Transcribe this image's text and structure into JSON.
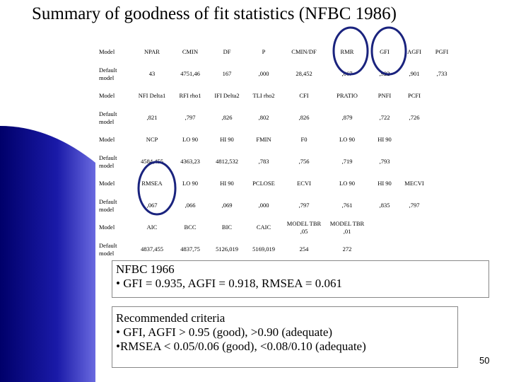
{
  "header": {
    "title": "Summary of goodness of fit statistics (NFBC 1986)"
  },
  "table": {
    "rows": [
      [
        "Model",
        "NPAR",
        "CMIN",
        "DF",
        "P",
        "CMIN/DF",
        "RMR",
        "GFI",
        "AGFI",
        "PGFI"
      ],
      [
        "Default model",
        "43",
        "4751,46",
        "167",
        ",000",
        "28,452",
        ",067",
        ",922",
        ",901",
        ",733"
      ],
      [
        "Model",
        "NFI Delta1",
        "RFI rho1",
        "IFI Delta2",
        "TLI rho2",
        "CFI",
        "PRATIO",
        "PNFI",
        "PCFI"
      ],
      [
        "Default model",
        ",821",
        ",797",
        ",826",
        ",802",
        ",826",
        ",879",
        ",722",
        ",726"
      ],
      [
        "Model",
        "NCP",
        "LO 90",
        "HI 90",
        "FMIN",
        "F0",
        "LO 90",
        "HI 90"
      ],
      [
        "Default model",
        "4584,455",
        "4363,23",
        "4812,532",
        ",783",
        ",756",
        ",719",
        ",793"
      ],
      [
        "Model",
        "RMSEA",
        "LO 90",
        "HI 90",
        "PCLOSE",
        "ECVI",
        "LO 90",
        "HI 90",
        "MECVI"
      ],
      [
        "Default model",
        ",067",
        ",066",
        ",069",
        ",000",
        ",797",
        ",761",
        ",835",
        ",797"
      ],
      [
        "Model",
        "AIC",
        "BCC",
        "BIC",
        "CAIC",
        "MODEL TBR ,05",
        "MODEL TBR ,01"
      ],
      [
        "Default model",
        "4837,455",
        "4837,75",
        "5126,019",
        "5169,019",
        "254",
        "272"
      ]
    ]
  },
  "box1": {
    "lines": [
      "NFBC 1966",
      "• GFI = 0.935, AGFI = 0.918, RMSEA = 0.061"
    ]
  },
  "box2": {
    "lines": [
      "Recommended criteria",
      "• GFI, AGFI  > 0.95 (good), >0.90 (adequate)",
      "•RMSEA < 0.05/0.06 (good), <0.08/0.10 (adequate)"
    ]
  },
  "page_number": "50"
}
